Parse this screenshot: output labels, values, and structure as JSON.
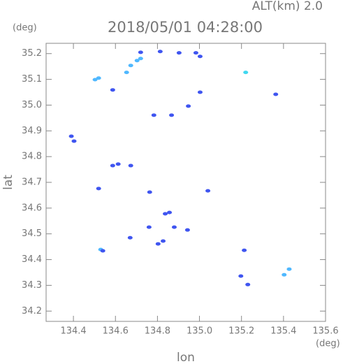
{
  "chart_data": {
    "type": "scatter",
    "title": "2018/05/01 04:28:00",
    "subtitle": "ALT(km) 2.0",
    "y_unit": "(deg)",
    "x_unit": "(deg)",
    "x_label": "lon",
    "y_label": "lat",
    "xlim": [
      134.27,
      135.6
    ],
    "ylim": [
      34.16,
      35.24
    ],
    "xticks": [
      134.4,
      134.6,
      134.8,
      {
        "value": 135,
        "label": "135.0"
      },
      135.2,
      135.4,
      135.6
    ],
    "yticks": [
      34.2,
      34.3,
      34.4,
      34.5,
      34.6,
      34.7,
      34.8,
      34.9,
      {
        "value": 35,
        "label": "35.0"
      },
      35.1,
      35.2
    ],
    "series": [
      {
        "color": "#4fb8ff",
        "x": [
          134.503,
          134.52,
          134.673,
          134.703,
          134.72,
          134.653,
          134.53,
          135.403,
          135.427
        ],
        "values": [
          35.099,
          35.105,
          35.154,
          35.173,
          35.181,
          35.127,
          34.439,
          34.341,
          34.363
        ]
      },
      {
        "color": "#3f55f0",
        "x": [
          134.72,
          134.813,
          134.903,
          134.983,
          135.003,
          135.363,
          135.003,
          134.587,
          134.783,
          134.867,
          134.947,
          134.39,
          134.403,
          134.587,
          134.673,
          134.613,
          134.52,
          134.763,
          135.04,
          134.837,
          134.857,
          134.76,
          134.88,
          134.943,
          134.67,
          134.803,
          134.827,
          134.54,
          135.213,
          135.197,
          135.23
        ],
        "values": [
          35.205,
          35.208,
          35.203,
          35.203,
          35.189,
          35.042,
          35.05,
          35.059,
          34.961,
          34.961,
          34.996,
          34.879,
          34.86,
          34.765,
          34.765,
          34.771,
          34.676,
          34.662,
          34.667,
          34.578,
          34.583,
          34.526,
          34.526,
          34.515,
          34.485,
          34.461,
          34.472,
          34.434,
          34.436,
          34.336,
          34.303
        ]
      },
      {
        "color": "#40d8f0",
        "x": [
          135.22
        ],
        "values": [
          35.127
        ]
      }
    ]
  }
}
